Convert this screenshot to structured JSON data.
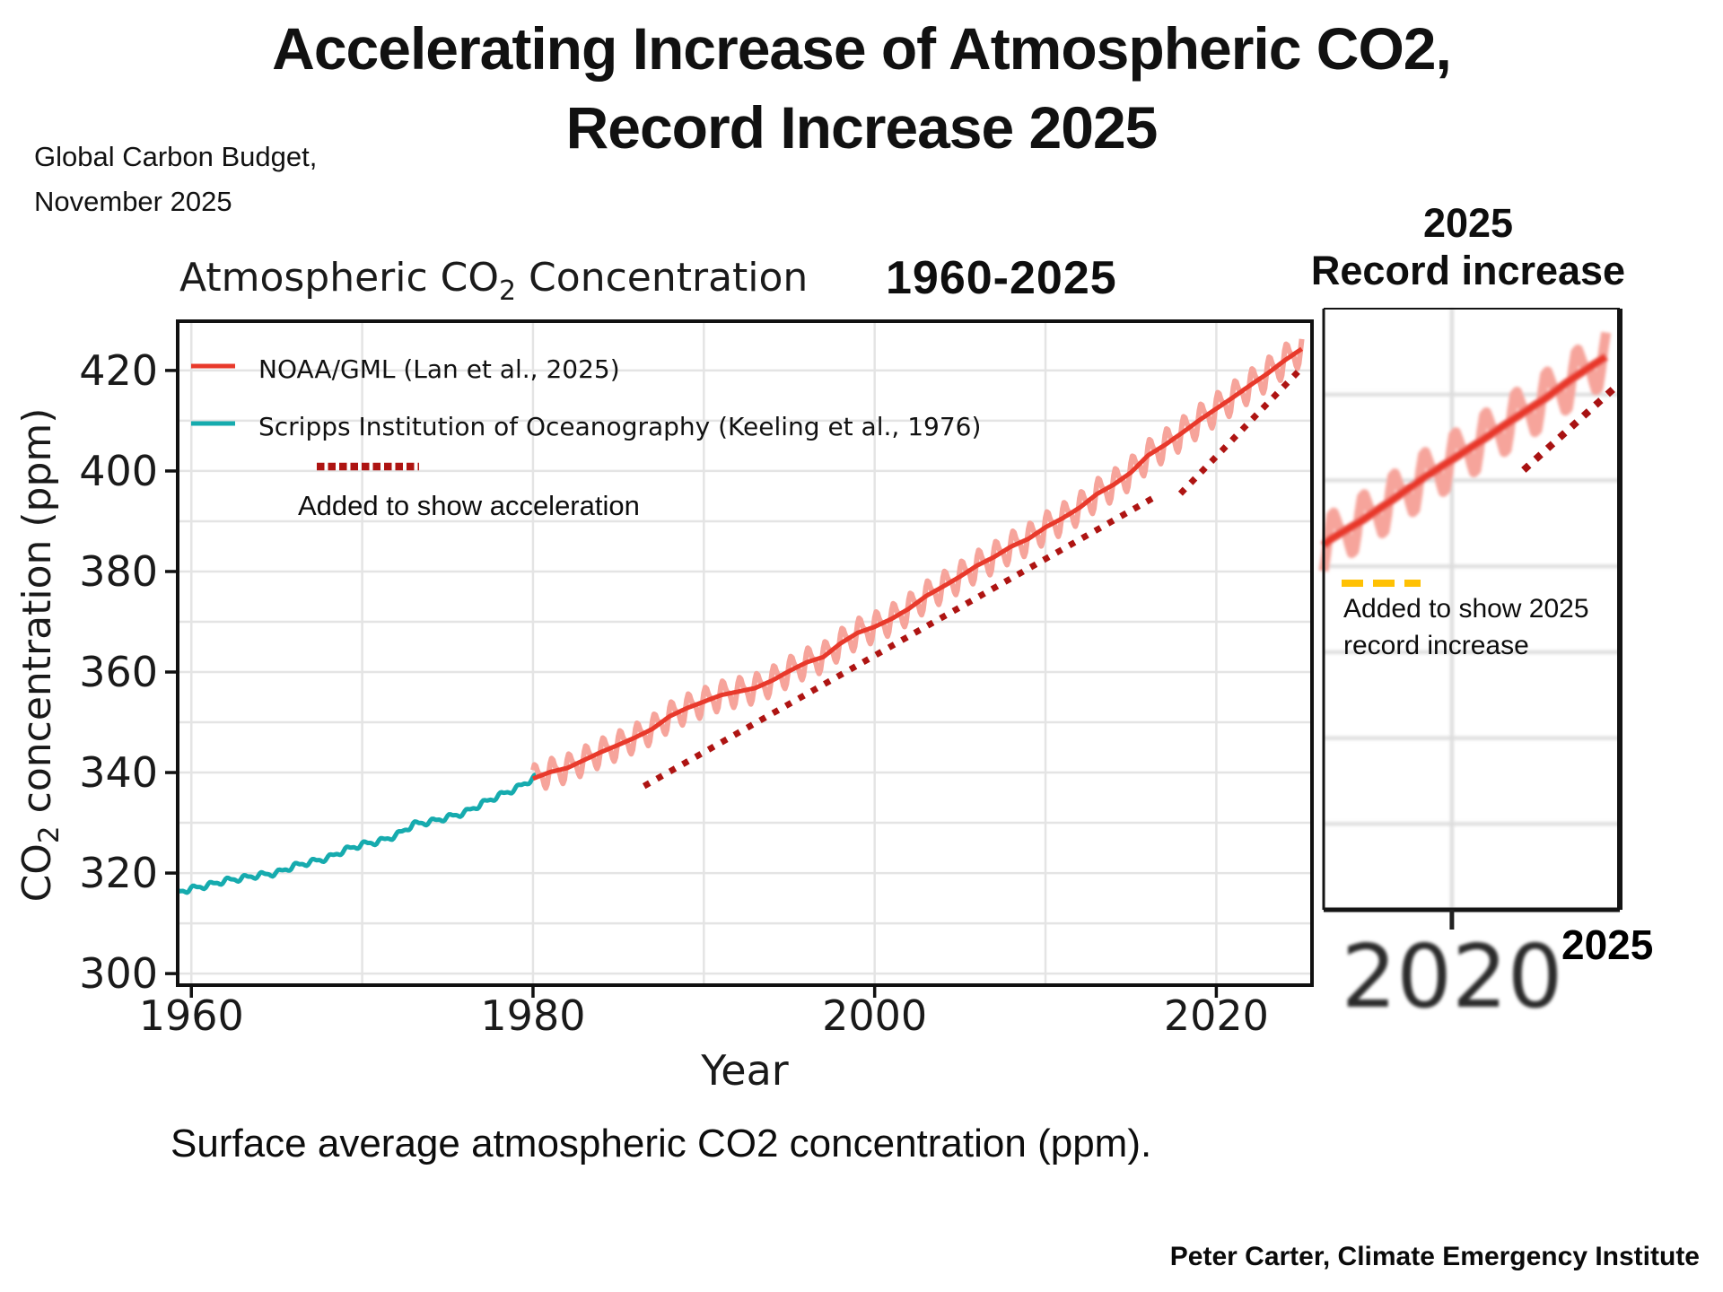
{
  "page": {
    "title_line1": "Accelerating Increase of Atmospheric CO2,",
    "title_line2": "Record Increase 2025",
    "source_line1": "Global Carbon Budget,",
    "source_line2": "November 2025",
    "caption": "Surface average atmospheric CO2 concentration (ppm).",
    "footer": "Peter Carter, Climate Emergency Institute"
  },
  "main_chart": {
    "title_prefix": "Atmospheric CO",
    "title_sub": "2",
    "title_suffix": " Concentration",
    "period": "1960-2025",
    "xlabel": "Year",
    "ylabel_prefix": "CO",
    "ylabel_sub": "2",
    "ylabel_suffix": " concentration (ppm)",
    "legend": [
      {
        "label": "NOAA/GML (Lan et al., 2025)",
        "color": "#e8392b"
      },
      {
        "label": "Scripps Institution of Oceanography (Keeling et al., 1976)",
        "color": "#16abae"
      }
    ],
    "annotation_label": "Added to show acceleration",
    "annotation_color": "#ae1412",
    "grid_color": "#e4e4e4",
    "axis_color": "#111111"
  },
  "inset": {
    "title_line1": "2025",
    "title_line2": "Record increase",
    "annotation_line1": "Added to show 2025",
    "annotation_line2": "record increase",
    "x_tick_label": "2020",
    "end_year_label": "2025",
    "dash_color": "#ffc103",
    "dotted_color": "#a81212"
  },
  "chart_data": [
    {
      "id": "main",
      "type": "line",
      "title": "Atmospheric CO2 Concentration",
      "period_label": "1960-2025",
      "xlabel": "Year",
      "ylabel": "CO2 concentration (ppm)",
      "xlim": [
        1959.2,
        2025.6
      ],
      "ylim": [
        297.7,
        429.8
      ],
      "x_ticks": [
        1960,
        1980,
        2000,
        2020
      ],
      "y_ticks": [
        300,
        320,
        340,
        360,
        380,
        400,
        420
      ],
      "grid": true,
      "grid_step_x": 10,
      "grid_step_y": 10,
      "legend_position": "upper left",
      "series": [
        {
          "name": "NOAA/GML (Lan et al., 2025)",
          "color": "#e8392b",
          "seasonal_color": "#f6a49b",
          "start_year": 1980,
          "x_start": 1980.0,
          "x_end": 2025.08,
          "seasonal_amplitude": 2.8,
          "annual_values": [
            338.8,
            340.1,
            340.9,
            342.5,
            344.1,
            345.5,
            347.0,
            348.7,
            351.2,
            352.8,
            354.1,
            355.4,
            356.1,
            356.8,
            358.3,
            360.2,
            361.9,
            363.0,
            365.7,
            367.8,
            369.0,
            370.6,
            372.6,
            375.1,
            377.0,
            379.0,
            381.2,
            382.9,
            385.0,
            386.5,
            388.8,
            390.6,
            392.7,
            395.4,
            397.3,
            399.7,
            403.1,
            405.2,
            407.6,
            410.1,
            412.4,
            414.7,
            417.1,
            419.4,
            422.0,
            424.3
          ]
        },
        {
          "name": "Scripps Institution of Oceanography (Keeling et al., 1976)",
          "color": "#16abae",
          "seasonal_color": "#16abae",
          "start_year": 1959,
          "x_start": 1959.25,
          "x_end": 1980.17,
          "seasonal_amplitude": 0.55,
          "annual_values": [
            316.0,
            316.9,
            317.6,
            318.5,
            319.0,
            319.6,
            320.0,
            321.4,
            322.2,
            323.0,
            324.6,
            325.7,
            326.3,
            327.5,
            329.7,
            330.2,
            331.1,
            332.0,
            333.8,
            335.4,
            336.8,
            338.8
          ]
        }
      ],
      "annotations": [
        {
          "label": "Added to show acceleration",
          "style": "dotted",
          "color": "#ae1412",
          "segments": [
            [
              1986.5,
              337.3,
              2016.6,
              395.2
            ],
            [
              2017.9,
              395.5,
              2024.8,
              419.8
            ]
          ]
        }
      ]
    },
    {
      "id": "inset-2025-record-increase",
      "type": "line",
      "title": "2025 Record increase",
      "xlim": [
        2015.8,
        2025.5
      ],
      "ylim": [
        360,
        430
      ],
      "x_ticks": [
        2020
      ],
      "y_ticks": [],
      "grid": true,
      "grid_step_x": 10,
      "grid_step_y": 10,
      "source_series": "NOAA/GML (Lan et al., 2025)",
      "x_start": 2015.8,
      "x_end": 2025.08,
      "annotations": [
        {
          "label": "Added to show 2025 record increase",
          "style": "dotted",
          "color": "#a81212",
          "segments": [
            [
              2022.35,
              411.2,
              2025.4,
              421.0
            ]
          ]
        }
      ]
    }
  ]
}
